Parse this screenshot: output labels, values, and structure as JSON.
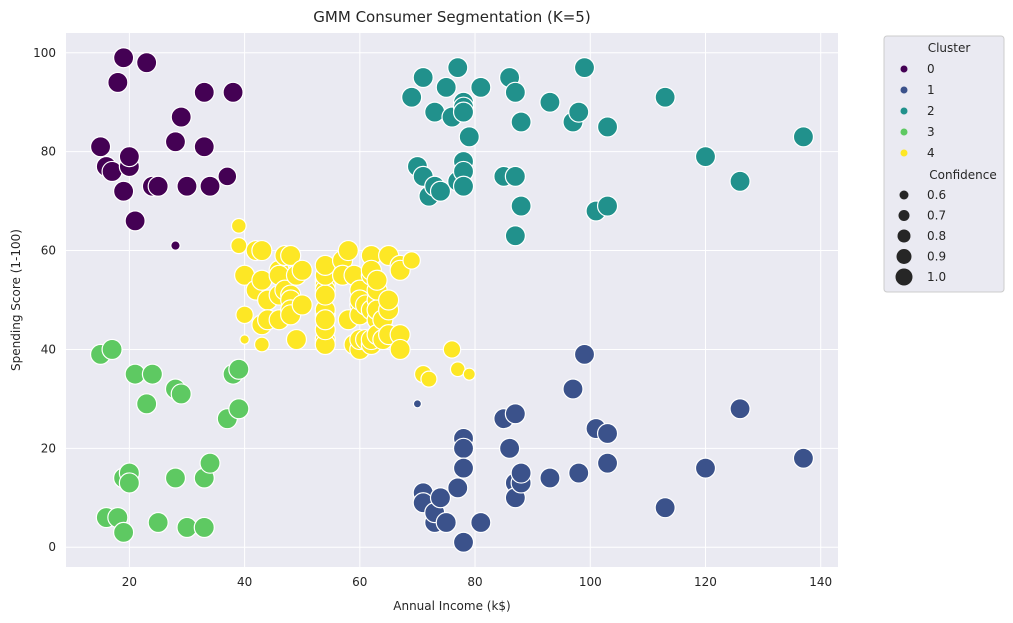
{
  "chart_data": {
    "type": "scatter",
    "title": "GMM Consumer Segmentation (K=5)",
    "xlabel": "Annual Income (k$)",
    "ylabel": "Spending Score (1-100)",
    "xlim": [
      9,
      143
    ],
    "ylim": [
      -4,
      104
    ],
    "x_ticks": [
      "20",
      "40",
      "60",
      "80",
      "100",
      "120",
      "140"
    ],
    "y_ticks": [
      "0",
      "20",
      "40",
      "60",
      "80",
      "100"
    ],
    "grid": true,
    "legend_placement": "outside-top-right",
    "legend": {
      "hue_title": "Cluster",
      "size_title": "Confidence",
      "size_entries": [
        "0.6",
        "0.7",
        "0.8",
        "0.9",
        "1.0"
      ]
    },
    "colors": {
      "background": "#eaeaf2",
      "grid": "#ffffff",
      "marker_edge": "#ffffff"
    },
    "series": [
      {
        "name": "0",
        "color": "#440154",
        "points": [
          [
            15,
            81,
            1.0
          ],
          [
            16,
            77,
            1.0
          ],
          [
            17,
            76,
            1.0
          ],
          [
            18,
            94,
            1.0
          ],
          [
            19,
            99,
            1.0
          ],
          [
            19,
            72,
            1.0
          ],
          [
            20,
            77,
            1.0
          ],
          [
            20,
            79,
            1.0
          ],
          [
            21,
            66,
            1.0
          ],
          [
            23,
            98,
            1.0
          ],
          [
            24,
            73,
            1.0
          ],
          [
            25,
            73,
            1.0
          ],
          [
            28,
            82,
            1.0
          ],
          [
            28,
            61,
            0.6
          ],
          [
            29,
            87,
            1.0
          ],
          [
            30,
            73,
            1.0
          ],
          [
            33,
            92,
            1.0
          ],
          [
            33,
            81,
            1.0
          ],
          [
            34,
            73,
            1.0
          ],
          [
            37,
            75,
            0.95
          ],
          [
            38,
            92,
            1.0
          ]
        ]
      },
      {
        "name": "1",
        "color": "#3b528b",
        "points": [
          [
            70,
            29,
            0.55
          ],
          [
            71,
            11,
            1.0
          ],
          [
            71,
            9,
            1.0
          ],
          [
            73,
            5,
            1.0
          ],
          [
            73,
            7,
            1.0
          ],
          [
            74,
            10,
            1.0
          ],
          [
            75,
            5,
            1.0
          ],
          [
            77,
            12,
            1.0
          ],
          [
            78,
            22,
            1.0
          ],
          [
            78,
            20,
            1.0
          ],
          [
            78,
            16,
            1.0
          ],
          [
            78,
            1,
            1.0
          ],
          [
            81,
            5,
            1.0
          ],
          [
            85,
            26,
            1.0
          ],
          [
            86,
            20,
            1.0
          ],
          [
            87,
            27,
            1.0
          ],
          [
            87,
            13,
            1.0
          ],
          [
            87,
            10,
            1.0
          ],
          [
            88,
            13,
            1.0
          ],
          [
            88,
            15,
            1.0
          ],
          [
            93,
            14,
            1.0
          ],
          [
            97,
            32,
            1.0
          ],
          [
            98,
            15,
            1.0
          ],
          [
            99,
            39,
            1.0
          ],
          [
            101,
            24,
            1.0
          ],
          [
            103,
            17,
            1.0
          ],
          [
            103,
            23,
            1.0
          ],
          [
            113,
            8,
            1.0
          ],
          [
            120,
            16,
            1.0
          ],
          [
            126,
            28,
            1.0
          ],
          [
            137,
            18,
            1.0
          ]
        ]
      },
      {
        "name": "2",
        "color": "#21918c",
        "points": [
          [
            69,
            91,
            1.0
          ],
          [
            70,
            77,
            1.0
          ],
          [
            71,
            95,
            1.0
          ],
          [
            71,
            75,
            1.0
          ],
          [
            72,
            71,
            1.0
          ],
          [
            73,
            88,
            1.0
          ],
          [
            73,
            73,
            1.0
          ],
          [
            74,
            72,
            1.0
          ],
          [
            75,
            93,
            1.0
          ],
          [
            76,
            87,
            1.0
          ],
          [
            77,
            97,
            1.0
          ],
          [
            77,
            74,
            1.0
          ],
          [
            78,
            90,
            1.0
          ],
          [
            78,
            89,
            1.0
          ],
          [
            78,
            88,
            1.0
          ],
          [
            78,
            78,
            1.0
          ],
          [
            78,
            76,
            1.0
          ],
          [
            78,
            73,
            1.0
          ],
          [
            79,
            83,
            1.0
          ],
          [
            81,
            93,
            1.0
          ],
          [
            85,
            75,
            1.0
          ],
          [
            86,
            95,
            1.0
          ],
          [
            87,
            92,
            1.0
          ],
          [
            87,
            75,
            1.0
          ],
          [
            87,
            63,
            1.0
          ],
          [
            88,
            86,
            1.0
          ],
          [
            88,
            69,
            1.0
          ],
          [
            93,
            90,
            1.0
          ],
          [
            97,
            86,
            1.0
          ],
          [
            98,
            88,
            1.0
          ],
          [
            99,
            97,
            1.0
          ],
          [
            101,
            68,
            1.0
          ],
          [
            103,
            85,
            1.0
          ],
          [
            103,
            69,
            1.0
          ],
          [
            113,
            91,
            1.0
          ],
          [
            120,
            79,
            1.0
          ],
          [
            126,
            74,
            1.0
          ],
          [
            137,
            83,
            1.0
          ]
        ]
      },
      {
        "name": "3",
        "color": "#5ec962",
        "points": [
          [
            15,
            39,
            1.0
          ],
          [
            16,
            6,
            1.0
          ],
          [
            17,
            40,
            1.0
          ],
          [
            18,
            6,
            1.0
          ],
          [
            19,
            3,
            1.0
          ],
          [
            19,
            14,
            1.0
          ],
          [
            20,
            15,
            1.0
          ],
          [
            20,
            13,
            1.0
          ],
          [
            21,
            35,
            1.0
          ],
          [
            23,
            29,
            1.0
          ],
          [
            24,
            35,
            1.0
          ],
          [
            25,
            5,
            1.0
          ],
          [
            28,
            14,
            1.0
          ],
          [
            28,
            32,
            1.0
          ],
          [
            29,
            31,
            1.0
          ],
          [
            30,
            4,
            1.0
          ],
          [
            33,
            4,
            1.0
          ],
          [
            33,
            14,
            1.0
          ],
          [
            34,
            17,
            1.0
          ],
          [
            37,
            26,
            1.0
          ],
          [
            38,
            35,
            1.0
          ],
          [
            39,
            36,
            1.0
          ],
          [
            39,
            28,
            1.0
          ]
        ]
      },
      {
        "name": "4",
        "color": "#fde725",
        "points": [
          [
            39,
            65,
            0.8
          ],
          [
            39,
            61,
            0.85
          ],
          [
            40,
            55,
            1.0
          ],
          [
            40,
            47,
            0.9
          ],
          [
            40,
            42,
            0.6
          ],
          [
            42,
            60,
            1.0
          ],
          [
            42,
            52,
            1.0
          ],
          [
            43,
            60,
            1.0
          ],
          [
            43,
            54,
            1.0
          ],
          [
            43,
            45,
            1.0
          ],
          [
            43,
            41,
            0.8
          ],
          [
            44,
            50,
            1.0
          ],
          [
            44,
            46,
            1.0
          ],
          [
            46,
            51,
            1.0
          ],
          [
            46,
            46,
            1.0
          ],
          [
            46,
            56,
            1.0
          ],
          [
            46,
            55,
            1.0
          ],
          [
            47,
            52,
            1.0
          ],
          [
            47,
            59,
            1.0
          ],
          [
            48,
            51,
            1.0
          ],
          [
            48,
            59,
            1.0
          ],
          [
            48,
            50,
            1.0
          ],
          [
            48,
            48,
            1.0
          ],
          [
            48,
            47,
            1.0
          ],
          [
            49,
            55,
            1.0
          ],
          [
            49,
            42,
            1.0
          ],
          [
            50,
            49,
            1.0
          ],
          [
            50,
            56,
            1.0
          ],
          [
            54,
            47,
            1.0
          ],
          [
            54,
            54,
            1.0
          ],
          [
            54,
            53,
            1.0
          ],
          [
            54,
            48,
            1.0
          ],
          [
            54,
            52,
            1.0
          ],
          [
            54,
            42,
            1.0
          ],
          [
            54,
            51,
            1.0
          ],
          [
            54,
            55,
            1.0
          ],
          [
            54,
            41,
            1.0
          ],
          [
            54,
            44,
            1.0
          ],
          [
            54,
            57,
            1.0
          ],
          [
            54,
            46,
            1.0
          ],
          [
            57,
            58,
            1.0
          ],
          [
            57,
            55,
            1.0
          ],
          [
            58,
            60,
            1.0
          ],
          [
            58,
            46,
            1.0
          ],
          [
            59,
            55,
            1.0
          ],
          [
            59,
            41,
            1.0
          ],
          [
            60,
            49,
            1.0
          ],
          [
            60,
            40,
            1.0
          ],
          [
            60,
            42,
            1.0
          ],
          [
            60,
            52,
            1.0
          ],
          [
            60,
            47,
            1.0
          ],
          [
            60,
            50,
            1.0
          ],
          [
            61,
            42,
            1.0
          ],
          [
            61,
            49,
            1.0
          ],
          [
            62,
            41,
            1.0
          ],
          [
            62,
            48,
            1.0
          ],
          [
            62,
            59,
            1.0
          ],
          [
            62,
            55,
            1.0
          ],
          [
            62,
            56,
            1.0
          ],
          [
            62,
            42,
            1.0
          ],
          [
            63,
            50,
            1.0
          ],
          [
            63,
            46,
            1.0
          ],
          [
            63,
            43,
            1.0
          ],
          [
            63,
            48,
            1.0
          ],
          [
            63,
            52,
            1.0
          ],
          [
            63,
            54,
            1.0
          ],
          [
            64,
            42,
            1.0
          ],
          [
            64,
            46,
            1.0
          ],
          [
            65,
            48,
            1.0
          ],
          [
            65,
            50,
            1.0
          ],
          [
            65,
            43,
            1.0
          ],
          [
            65,
            59,
            1.0
          ],
          [
            67,
            43,
            1.0
          ],
          [
            67,
            57,
            1.0
          ],
          [
            67,
            56,
            1.0
          ],
          [
            67,
            40,
            1.0
          ],
          [
            69,
            58,
            0.9
          ],
          [
            71,
            35,
            0.9
          ],
          [
            72,
            34,
            0.85
          ],
          [
            76,
            40,
            0.9
          ],
          [
            77,
            36,
            0.8
          ],
          [
            79,
            35,
            0.7
          ]
        ]
      }
    ]
  }
}
